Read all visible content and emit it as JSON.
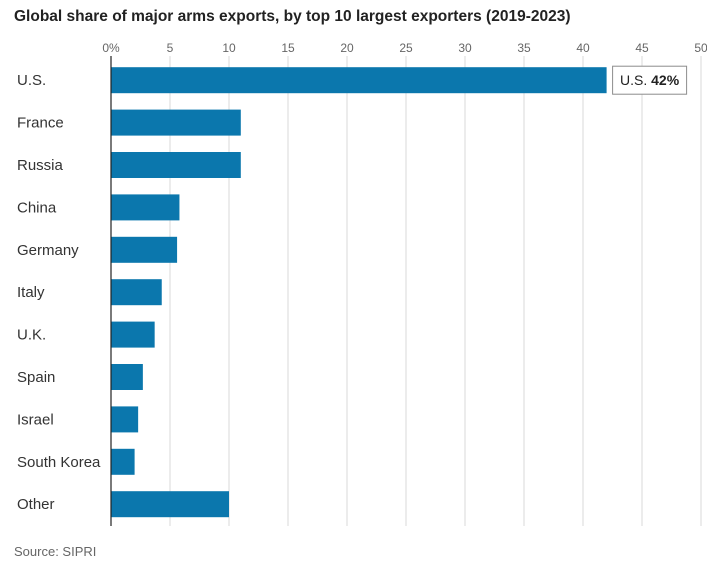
{
  "title": "Global share of major arms exports, by top 10 largest exporters (2019-2023)",
  "source": "Source: SIPRI",
  "colors": {
    "bar": "#0b77ad",
    "grid": "#d9d9d9",
    "axis": "#222222"
  },
  "callout": {
    "category": "U.S.",
    "label": "U.S.",
    "value": "42%"
  },
  "chart_data": {
    "type": "bar",
    "orientation": "horizontal",
    "categories": [
      "U.S.",
      "France",
      "Russia",
      "China",
      "Germany",
      "Italy",
      "U.K.",
      "Spain",
      "Israel",
      "South Korea",
      "Other"
    ],
    "values": [
      42,
      11,
      11,
      5.8,
      5.6,
      4.3,
      3.7,
      2.7,
      2.3,
      2.0,
      10.0
    ],
    "title": "Global share of major arms exports, by top 10 largest exporters (2019-2023)",
    "xlabel": "",
    "ylabel": "",
    "xlim": [
      0,
      50
    ],
    "xticks": [
      0,
      5,
      10,
      15,
      20,
      25,
      30,
      35,
      40,
      45,
      50
    ],
    "xtick_labels": [
      "0%",
      "5",
      "10",
      "15",
      "20",
      "25",
      "30",
      "35",
      "40",
      "45",
      "50"
    ],
    "grid": true
  }
}
